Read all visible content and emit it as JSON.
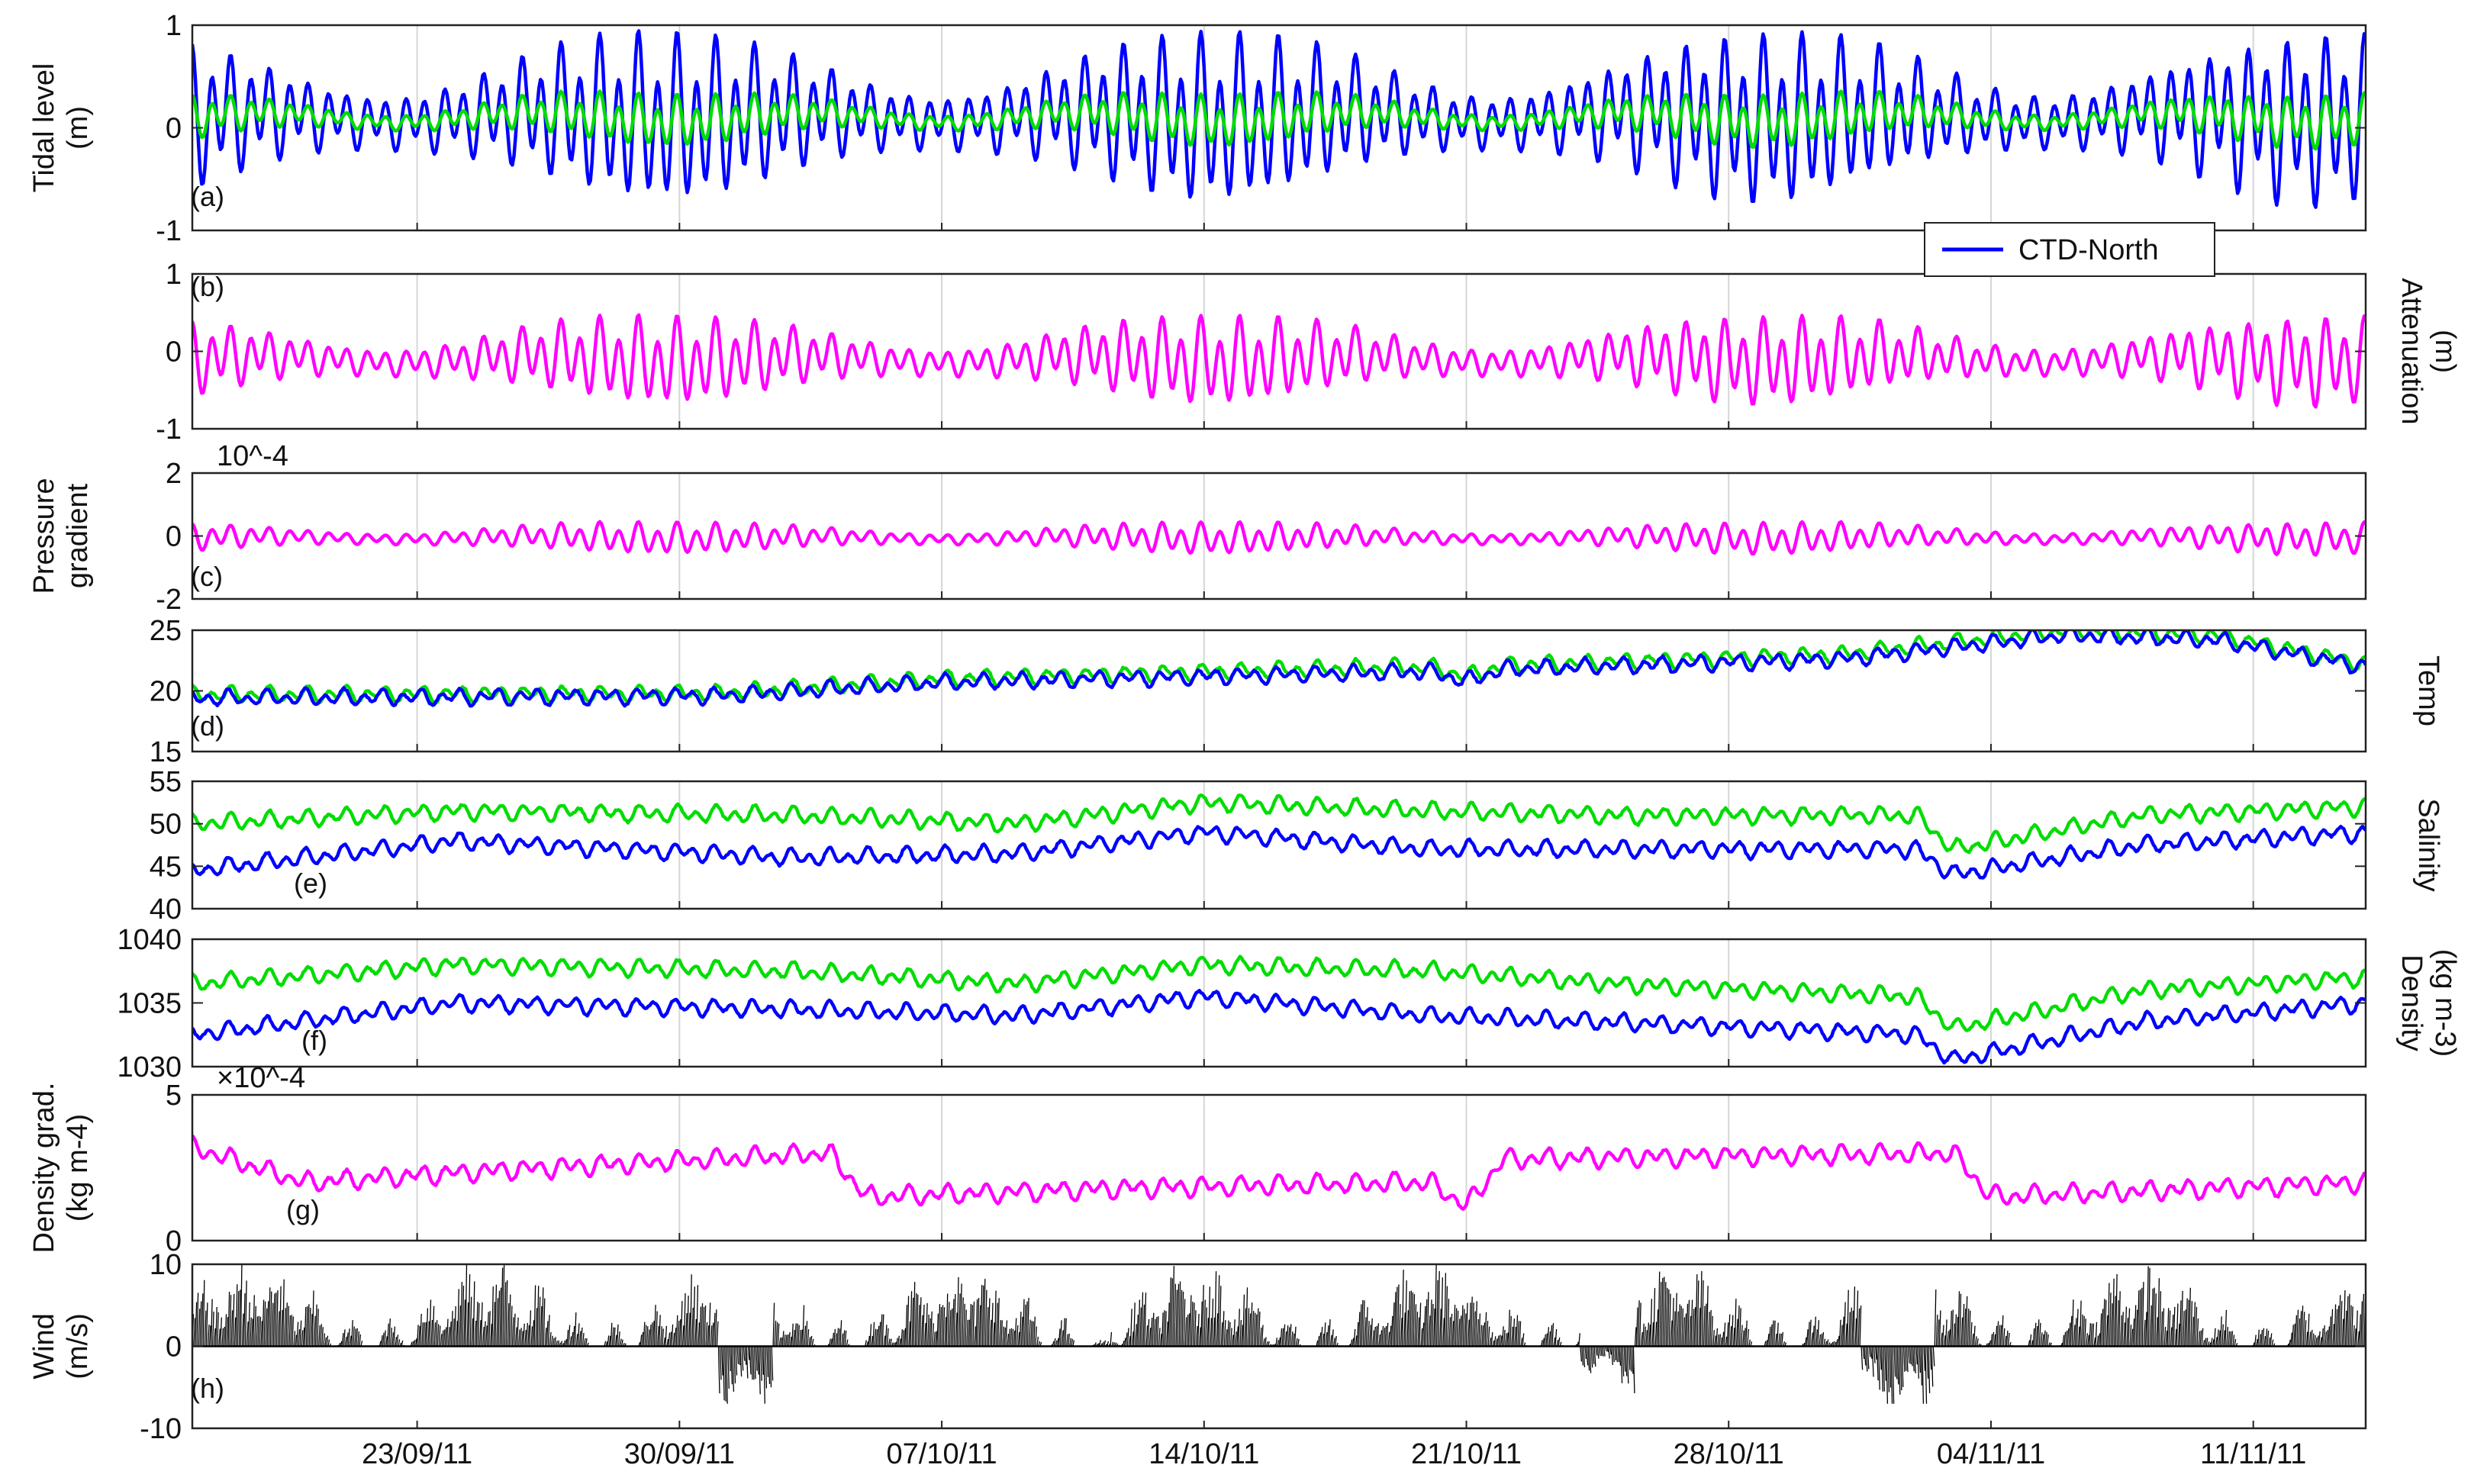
{
  "chart_data": {
    "type": "line",
    "legend": {
      "entries": [
        "CTD-North"
      ],
      "placement": "inside-bottom-right of panel (a)"
    },
    "x_axis": {
      "type": "date",
      "range": [
        "2011-09-17",
        "2011-11-14"
      ],
      "ticks": [
        "23/09/11",
        "30/09/11",
        "07/10/11",
        "14/10/11",
        "21/10/11",
        "28/10/11",
        "04/11/11",
        "11/11/11"
      ],
      "tick_dates": [
        "2011-09-23",
        "2011-09-30",
        "2011-10-07",
        "2011-10-14",
        "2011-10-21",
        "2011-10-28",
        "2011-11-04",
        "2011-11-11"
      ]
    },
    "panels": [
      {
        "id": "a",
        "label": "(a)",
        "ylabel": [
          "Tidal level",
          "(m)"
        ],
        "ylabel_side": "left",
        "ylim": [
          -1,
          1
        ],
        "yticks": [
          -1,
          0,
          1
        ],
        "ytick_labels": [
          "-1",
          "0",
          "1"
        ],
        "grid": "vertical",
        "series": [
          {
            "name": "CTD-North",
            "color": "#0000ff",
            "sampling": "hourly",
            "tidal_amplitude": [
              0.28,
              0.9
            ],
            "mean": 0.1
          },
          {
            "color": "#00dd00",
            "sampling": "hourly",
            "tidal_amplitude": [
              0.08,
              0.28
            ],
            "mean": 0.1
          }
        ]
      },
      {
        "id": "b",
        "label": "(b)",
        "ylabel": [
          "Attenuation",
          "(m)"
        ],
        "ylabel_side": "right",
        "ylim": [
          -1,
          1
        ],
        "yticks": [
          -1,
          0,
          1
        ],
        "ytick_labels": [
          "-1",
          "0",
          "1"
        ],
        "grid": "vertical",
        "series": [
          {
            "color": "#ff00ff",
            "sampling": "hourly",
            "tidal_amplitude": [
              0.18,
              0.62
            ],
            "mean": -0.1
          }
        ]
      },
      {
        "id": "c",
        "label": "(c)",
        "ylabel": [
          "Pressure",
          "gradient"
        ],
        "ylabel_side": "left",
        "ylim": [
          -2,
          2
        ],
        "yticks": [
          -2,
          0,
          2
        ],
        "ytick_labels": [
          "-2",
          "0",
          "2"
        ],
        "exponent": "10^-4",
        "grid": "vertical",
        "series": [
          {
            "color": "#ff00ff",
            "sampling": "hourly",
            "tidal_amplitude": [
              0.18,
              0.55
            ],
            "mean": -0.05
          }
        ]
      },
      {
        "id": "d",
        "label": "(d)",
        "ylabel": [
          "Temp"
        ],
        "ylabel_side": "right",
        "ylim": [
          15,
          25
        ],
        "yticks": [
          15,
          20,
          25
        ],
        "ytick_labels": [
          "15",
          "20",
          "25"
        ],
        "grid": "vertical",
        "series": [
          {
            "color": "#00dd00",
            "sampling": "hourly",
            "trend": [
              [
                0,
                19.7
              ],
              [
                14,
                19.8
              ],
              [
                20,
                21.0
              ],
              [
                30,
                21.8
              ],
              [
                33,
                22.0
              ],
              [
                34,
                21.2
              ],
              [
                35,
                22.1
              ],
              [
                44,
                23.0
              ],
              [
                50,
                25.0
              ],
              [
                54,
                24.6
              ],
              [
                58,
                22.2
              ]
            ]
          },
          {
            "color": "#0000ff",
            "sampling": "hourly",
            "trend": [
              [
                0,
                19.4
              ],
              [
                14,
                19.6
              ],
              [
                20,
                20.7
              ],
              [
                30,
                21.4
              ],
              [
                33,
                21.6
              ],
              [
                34,
                20.8
              ],
              [
                35,
                21.8
              ],
              [
                44,
                22.6
              ],
              [
                50,
                24.6
              ],
              [
                54,
                24.2
              ],
              [
                58,
                22.0
              ]
            ]
          }
        ]
      },
      {
        "id": "e",
        "label": "(e)",
        "ylabel": [
          "Salinity"
        ],
        "ylabel_side": "right",
        "ylim": [
          40,
          55
        ],
        "yticks": [
          40,
          45,
          50,
          55
        ],
        "ytick_labels": [
          "40",
          "45",
          "50",
          "55"
        ],
        "grid": "vertical",
        "series": [
          {
            "color": "#00dd00",
            "sampling": "hourly",
            "trend": [
              [
                0,
                50.0
              ],
              [
                7,
                51.5
              ],
              [
                16,
                51.0
              ],
              [
                22,
                50.0
              ],
              [
                27,
                52.5
              ],
              [
                33,
                51.5
              ],
              [
                38,
                51.0
              ],
              [
                46,
                51.0
              ],
              [
                47,
                47.0
              ],
              [
                52,
                51.0
              ],
              [
                58,
                52.0
              ]
            ]
          },
          {
            "color": "#0000ff",
            "sampling": "hourly",
            "trend": [
              [
                0,
                44.5
              ],
              [
                7,
                48.0
              ],
              [
                16,
                46.0
              ],
              [
                22,
                46.5
              ],
              [
                27,
                49.0
              ],
              [
                33,
                47.0
              ],
              [
                38,
                47.0
              ],
              [
                46,
                47.0
              ],
              [
                47,
                44.0
              ],
              [
                52,
                47.5
              ],
              [
                58,
                49.0
              ]
            ]
          }
        ]
      },
      {
        "id": "f",
        "label": "(f)",
        "ylabel": [
          "Density",
          "(kg m-3)"
        ],
        "ylabel_side": "right",
        "ylim": [
          1030,
          1040
        ],
        "yticks": [
          1030,
          1035,
          1040
        ],
        "ytick_labels": [
          "1030",
          "1035",
          "1040"
        ],
        "grid": "vertical",
        "series": [
          {
            "color": "#00dd00",
            "sampling": "hourly",
            "trend": [
              [
                0,
                1036.5
              ],
              [
                7,
                1038.0
              ],
              [
                16,
                1037.5
              ],
              [
                22,
                1036.5
              ],
              [
                27,
                1038.0
              ],
              [
                33,
                1037.5
              ],
              [
                38,
                1036.5
              ],
              [
                46,
                1035.5
              ],
              [
                47,
                1033.0
              ],
              [
                52,
                1036.0
              ],
              [
                58,
                1037.0
              ]
            ]
          },
          {
            "color": "#0000ff",
            "sampling": "hourly",
            "trend": [
              [
                0,
                1032.5
              ],
              [
                7,
                1035.0
              ],
              [
                16,
                1034.5
              ],
              [
                22,
                1034.0
              ],
              [
                27,
                1035.5
              ],
              [
                33,
                1034.0
              ],
              [
                38,
                1033.5
              ],
              [
                46,
                1032.5
              ],
              [
                47,
                1030.5
              ],
              [
                52,
                1033.5
              ],
              [
                58,
                1035.0
              ]
            ]
          }
        ]
      },
      {
        "id": "g",
        "label": "(g)",
        "ylabel": [
          "Density grad.",
          "(kg m-4)"
        ],
        "ylabel_side": "left",
        "ylim": [
          0,
          5
        ],
        "yticks": [
          0,
          5
        ],
        "ytick_labels": [
          "0",
          "5"
        ],
        "exponent": "×10^-4",
        "grid": "vertical",
        "series": [
          {
            "color": "#ff00ff",
            "sampling": "hourly",
            "trend": [
              [
                0,
                3.2
              ],
              [
                3,
                2.0
              ],
              [
                8,
                2.4
              ],
              [
                17,
                3.0
              ],
              [
                18,
                1.5
              ],
              [
                25,
                1.8
              ],
              [
                33,
                2.0
              ],
              [
                34,
                1.2
              ],
              [
                35,
                2.8
              ],
              [
                47,
                3.0
              ],
              [
                48,
                1.5
              ],
              [
                58,
                2.0
              ]
            ]
          }
        ]
      },
      {
        "id": "h",
        "label": "(h)",
        "ylabel": [
          "Wind",
          "(m/s)"
        ],
        "ylabel_side": "left",
        "ylim": [
          -10,
          10
        ],
        "yticks": [
          -10,
          0,
          10
        ],
        "ytick_labels": [
          "-10",
          "0",
          "10"
        ],
        "grid": "none",
        "series": [
          {
            "color": "#000000",
            "style": "stick",
            "sampling": "hourly",
            "range": [
              -7,
              10
            ]
          }
        ]
      }
    ]
  }
}
